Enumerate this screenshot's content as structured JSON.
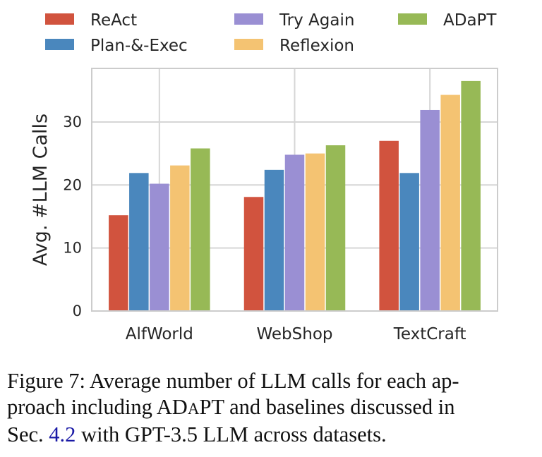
{
  "chart_data": {
    "type": "bar",
    "title": "",
    "xlabel": "",
    "ylabel": "Avg. #LLM Calls",
    "categories": [
      "AlfWorld",
      "WebShop",
      "TextCraft"
    ],
    "ylim": [
      0,
      38.5
    ],
    "yticks": [
      0,
      10,
      20,
      30
    ],
    "grid": true,
    "legend_position": "top",
    "series": [
      {
        "name": "ReAct",
        "color": "#d1533e",
        "values": [
          15.2,
          18.1,
          27.0
        ]
      },
      {
        "name": "Plan-&-Exec",
        "color": "#4a87bd",
        "values": [
          21.9,
          22.4,
          21.9
        ]
      },
      {
        "name": "Try Again",
        "color": "#9a8fd3",
        "values": [
          20.2,
          24.8,
          31.9
        ]
      },
      {
        "name": "Reflexion",
        "color": "#f4c372",
        "values": [
          23.1,
          25.0,
          34.3
        ]
      },
      {
        "name": "ADaPT",
        "color": "#97b956",
        "values": [
          25.8,
          26.3,
          36.5
        ]
      }
    ]
  },
  "caption": {
    "line1": "Figure 7:  Average number of LLM calls for each ap-",
    "line2_before": "proach including ",
    "line2_ad": "AD",
    "line2_a": "A",
    "line2_pt": "PT",
    "line2_after": " and baselines discussed in",
    "line3_before": "Sec. ",
    "line3_ref": "4.2",
    "line3_after": " with GPT-3.5 LLM across datasets."
  }
}
